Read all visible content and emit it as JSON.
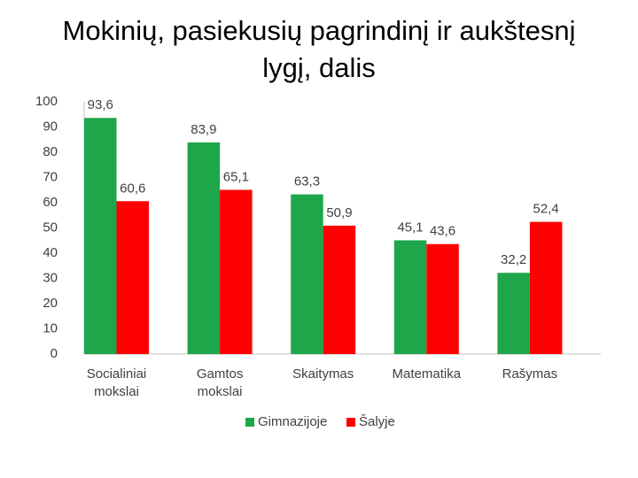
{
  "chart_data": {
    "type": "bar",
    "title": "Mokinių, pasiekusių pagrindinį ir aukštesnį lygį, dalis",
    "categories": [
      "Socialiniai mokslai",
      "Gamtos mokslai",
      "Skaitymas",
      "Matematika",
      "Rašymas"
    ],
    "series": [
      {
        "name": "Gimnazijoje",
        "color": "#1ea64b",
        "values": [
          93.6,
          83.9,
          63.3,
          45.1,
          32.2
        ],
        "value_labels": [
          "93,6",
          "83,9",
          "63,3",
          "45,1",
          "32,2"
        ]
      },
      {
        "name": "Šalyje",
        "color": "#ff0000",
        "values": [
          60.6,
          65.1,
          50.9,
          43.6,
          52.4
        ],
        "value_labels": [
          "60,6",
          "65,1",
          "50,9",
          "43,6",
          "52,4"
        ]
      }
    ],
    "ylim": [
      0,
      100
    ],
    "yticks": [
      0,
      10,
      20,
      30,
      40,
      50,
      60,
      70,
      80,
      90,
      100
    ],
    "legend": "bottom"
  }
}
